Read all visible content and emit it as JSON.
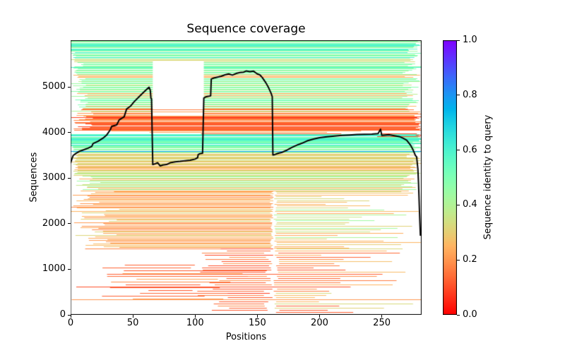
{
  "figure": {
    "background": "#ffffff",
    "frame_color": "#000000"
  },
  "chart_data": {
    "type": "line",
    "title": "Sequence coverage",
    "xlabel": "Positions",
    "ylabel": "Sequences",
    "xlim": [
      0,
      282
    ],
    "ylim": [
      0,
      6030
    ],
    "grid": false,
    "seed": 42,
    "x_ticks": {
      "values": [
        0,
        50,
        100,
        150,
        200,
        250
      ],
      "labels": [
        "0",
        "50",
        "100",
        "150",
        "200",
        "250"
      ]
    },
    "y_ticks": {
      "values": [
        0,
        1000,
        2000,
        3000,
        4000,
        5000
      ],
      "labels": [
        "0",
        "1000",
        "2000",
        "3000",
        "4000",
        "5000"
      ]
    },
    "colorbar": {
      "label": "Sequence identity to query",
      "cmap": "rainbow_r",
      "vmin": 0.0,
      "vmax": 1.0,
      "ticks": {
        "values": [
          0.0,
          0.2,
          0.4,
          0.6,
          0.8,
          1.0
        ],
        "labels": [
          "0.0",
          "0.2",
          "0.4",
          "0.6",
          "0.8",
          "1.0"
        ]
      }
    },
    "coverage_series": {
      "name": "coverage",
      "color": "#000000",
      "points": [
        [
          0,
          3340
        ],
        [
          1,
          3420
        ],
        [
          2,
          3500
        ],
        [
          4,
          3540
        ],
        [
          7,
          3590
        ],
        [
          10,
          3620
        ],
        [
          14,
          3660
        ],
        [
          17,
          3700
        ],
        [
          18,
          3760
        ],
        [
          22,
          3810
        ],
        [
          26,
          3880
        ],
        [
          29,
          3950
        ],
        [
          32,
          4070
        ],
        [
          33,
          4140
        ],
        [
          37,
          4170
        ],
        [
          39,
          4280
        ],
        [
          43,
          4350
        ],
        [
          45,
          4520
        ],
        [
          48,
          4580
        ],
        [
          51,
          4680
        ],
        [
          55,
          4790
        ],
        [
          58,
          4870
        ],
        [
          61,
          4950
        ],
        [
          63,
          5000
        ],
        [
          64,
          4930
        ],
        [
          64.5,
          4760
        ],
        [
          65,
          4740
        ],
        [
          66,
          3300
        ],
        [
          68,
          3320
        ],
        [
          70,
          3340
        ],
        [
          72,
          3270
        ],
        [
          74,
          3290
        ],
        [
          77,
          3300
        ],
        [
          80,
          3340
        ],
        [
          84,
          3360
        ],
        [
          88,
          3370
        ],
        [
          92,
          3385
        ],
        [
          96,
          3395
        ],
        [
          100,
          3420
        ],
        [
          102,
          3450
        ],
        [
          102.5,
          3520
        ],
        [
          104,
          3540
        ],
        [
          106,
          3550
        ],
        [
          107,
          4760
        ],
        [
          109,
          4790
        ],
        [
          111,
          4800
        ],
        [
          112.5,
          4810
        ],
        [
          113,
          5180
        ],
        [
          115,
          5200
        ],
        [
          118,
          5220
        ],
        [
          121,
          5240
        ],
        [
          124,
          5270
        ],
        [
          127,
          5290
        ],
        [
          130,
          5265
        ],
        [
          133,
          5300
        ],
        [
          136,
          5320
        ],
        [
          139,
          5330
        ],
        [
          141,
          5355
        ],
        [
          144,
          5340
        ],
        [
          147,
          5350
        ],
        [
          150,
          5290
        ],
        [
          152,
          5270
        ],
        [
          154,
          5210
        ],
        [
          157,
          5090
        ],
        [
          159,
          4990
        ],
        [
          161,
          4870
        ],
        [
          162,
          4790
        ],
        [
          162.5,
          3510
        ],
        [
          164,
          3520
        ],
        [
          167,
          3550
        ],
        [
          170,
          3570
        ],
        [
          174,
          3620
        ],
        [
          178,
          3680
        ],
        [
          182,
          3730
        ],
        [
          186,
          3770
        ],
        [
          190,
          3820
        ],
        [
          195,
          3860
        ],
        [
          200,
          3890
        ],
        [
          206,
          3910
        ],
        [
          212,
          3925
        ],
        [
          218,
          3940
        ],
        [
          224,
          3950
        ],
        [
          230,
          3960
        ],
        [
          236,
          3965
        ],
        [
          242,
          3970
        ],
        [
          247,
          3980
        ],
        [
          249,
          4075
        ],
        [
          250,
          3940
        ],
        [
          253,
          3950
        ],
        [
          256,
          3955
        ],
        [
          260,
          3935
        ],
        [
          264,
          3915
        ],
        [
          267,
          3880
        ],
        [
          270,
          3835
        ],
        [
          273,
          3730
        ],
        [
          275,
          3630
        ],
        [
          277,
          3500
        ],
        [
          278,
          3470
        ],
        [
          279,
          3200
        ],
        [
          279.5,
          2900
        ],
        [
          280,
          2500
        ],
        [
          280.5,
          2100
        ],
        [
          281,
          1750
        ]
      ]
    },
    "msa_rows": [
      {
        "y": 5445,
        "v": 0.6,
        "segs": [
          [
            0,
            66
          ],
          [
            107,
            283
          ]
        ]
      },
      {
        "y": 3600,
        "v": 0.78,
        "segs": [
          [
            0,
            282
          ]
        ]
      }
    ],
    "msa_bands": [
      {
        "y": [
          5955,
          6030
        ],
        "pitch": 1.2,
        "vals": [
          [
            0.47,
            3
          ],
          [
            0.52,
            2
          ],
          [
            0.44,
            1
          ]
        ],
        "xs": [
          0,
          0
        ],
        "xe": [
          272,
          283
        ]
      },
      {
        "y": [
          5888,
          5955
        ],
        "pitch": 1.1,
        "vals": [
          [
            0.6,
            5
          ],
          [
            0.56,
            1
          ]
        ],
        "xs": [
          0,
          0
        ],
        "xe": [
          270,
          283
        ]
      },
      {
        "y": [
          5843,
          5888
        ],
        "pitch": 1.3,
        "vals": [
          [
            0.46,
            2
          ],
          [
            0.5,
            1
          ]
        ],
        "xs": [
          0,
          0
        ],
        "xe": [
          272,
          283
        ]
      },
      {
        "y": [
          5790,
          5843
        ],
        "pitch": 1.1,
        "vals": [
          [
            0.58,
            4
          ],
          [
            0.55,
            1
          ]
        ],
        "xs": [
          0,
          0
        ],
        "xe": [
          270,
          283
        ]
      },
      {
        "y": [
          5590,
          5790
        ],
        "pitch": 1.4,
        "vals": [
          [
            0.46,
            3
          ],
          [
            0.5,
            2
          ],
          [
            0.42,
            2
          ],
          [
            0.33,
            1
          ],
          [
            0.6,
            1
          ]
        ],
        "xs": [
          0,
          5
        ],
        "xe": [
          268,
          283
        ]
      },
      {
        "y": [
          4530,
          5590
        ],
        "pitch": 1.5,
        "vals": [
          [
            0.45,
            4
          ],
          [
            0.48,
            3
          ],
          [
            0.4,
            2
          ],
          [
            0.33,
            2
          ],
          [
            0.25,
            1
          ],
          [
            0.5,
            2
          ]
        ],
        "xs": [
          0,
          14
        ],
        "xe": [
          266,
          283
        ],
        "gap": [
          66,
          107
        ],
        "gap_p": 1.0
      },
      {
        "y": [
          4360,
          4530
        ],
        "pitch": 1.5,
        "vals": [
          [
            0.22,
            2
          ],
          [
            0.28,
            2
          ],
          [
            0.4,
            1
          ],
          [
            0.15,
            1
          ]
        ],
        "xs": [
          0,
          20
        ],
        "xe": [
          270,
          283
        ],
        "gap": [
          66,
          107
        ],
        "gap_p": 0.5
      },
      {
        "y": [
          4050,
          4360
        ],
        "pitch": 1.15,
        "vals": [
          [
            0.1,
            3
          ],
          [
            0.14,
            3
          ],
          [
            0.18,
            2
          ],
          [
            0.25,
            1
          ]
        ],
        "xs": [
          0,
          18
        ],
        "xe": [
          276,
          283
        ]
      },
      {
        "y": [
          3965,
          4050
        ],
        "pitch": 1.9,
        "vals": [
          [
            0.13,
            2
          ],
          [
            0.22,
            1
          ]
        ],
        "xs": [
          10,
          120
        ],
        "xe": [
          180,
          283
        ]
      },
      {
        "y": [
          3855,
          3990
        ],
        "pitch": 2.4,
        "vals": [
          [
            0.1,
            1
          ]
        ],
        "xs": [
          246,
          252
        ],
        "xe": [
          278,
          283
        ]
      },
      {
        "y": [
          3710,
          3965
        ],
        "pitch": 1.1,
        "vals": [
          [
            0.58,
            3
          ],
          [
            0.55,
            2
          ],
          [
            0.62,
            2
          ],
          [
            0.5,
            1
          ]
        ],
        "xs": [
          0,
          0
        ],
        "xe": [
          274,
          283
        ]
      },
      {
        "y": [
          3560,
          3710
        ],
        "pitch": 1.4,
        "vals": [
          [
            0.45,
            2
          ],
          [
            0.48,
            1
          ],
          [
            0.42,
            1
          ]
        ],
        "xs": [
          0,
          3
        ],
        "xe": [
          272,
          283
        ]
      },
      {
        "y": [
          3060,
          3560
        ],
        "pitch": 1.3,
        "vals": [
          [
            0.33,
            3
          ],
          [
            0.36,
            2
          ],
          [
            0.3,
            2
          ],
          [
            0.42,
            1
          ],
          [
            0.25,
            1
          ]
        ],
        "xs": [
          0,
          6
        ],
        "xe": [
          270,
          283
        ]
      },
      {
        "y": [
          2720,
          3060
        ],
        "pitch": 1.5,
        "vals": [
          [
            0.42,
            2
          ],
          [
            0.3,
            2
          ],
          [
            0.25,
            2
          ],
          [
            0.46,
            1
          ],
          [
            0.36,
            1
          ]
        ],
        "xs": [
          0,
          25
        ],
        "xe": [
          265,
          283
        ]
      },
      {
        "y": [
          1450,
          2720
        ],
        "pitch": 1.7,
        "vals": [
          [
            0.22,
            3
          ],
          [
            0.18,
            2
          ],
          [
            0.26,
            2
          ],
          [
            0.3,
            1
          ]
        ],
        "xs": [
          0,
          40
        ],
        "xe": [
          160,
          163
        ]
      },
      {
        "y": [
          1450,
          2720
        ],
        "pitch": 2.6,
        "vals": [
          [
            0.32,
            2
          ],
          [
            0.36,
            1
          ],
          [
            0.25,
            2
          ],
          [
            0.42,
            1
          ]
        ],
        "xs": [
          163,
          166
        ],
        "xe": [
          200,
          283
        ]
      },
      {
        "y": [
          60,
          1450
        ],
        "pitch": 3.0,
        "vals": [
          [
            0.12,
            3
          ],
          [
            0.08,
            1
          ],
          [
            0.18,
            2
          ]
        ],
        "xs": [
          100,
          128
        ],
        "xe": [
          155,
          163
        ]
      },
      {
        "y": [
          300,
          1100
        ],
        "pitch": 4.0,
        "vals": [
          [
            0.12,
            2
          ],
          [
            0.18,
            1
          ],
          [
            0.22,
            1
          ]
        ],
        "xs": [
          18,
          75
        ],
        "xe": [
          95,
          163
        ]
      },
      {
        "y": [
          30,
          1450
        ],
        "pitch": 3.0,
        "vals": [
          [
            0.18,
            2
          ],
          [
            0.25,
            2
          ],
          [
            0.32,
            1
          ],
          [
            0.12,
            1
          ]
        ],
        "xs": [
          163,
          168
        ],
        "xe": [
          190,
          283
        ]
      },
      {
        "y": [
          150,
          900
        ],
        "pitch": 18,
        "vals": [
          [
            0.12,
            1
          ],
          [
            0.2,
            1
          ]
        ],
        "xs": [
          0,
          30
        ],
        "xe": [
          220,
          260
        ]
      }
    ]
  }
}
